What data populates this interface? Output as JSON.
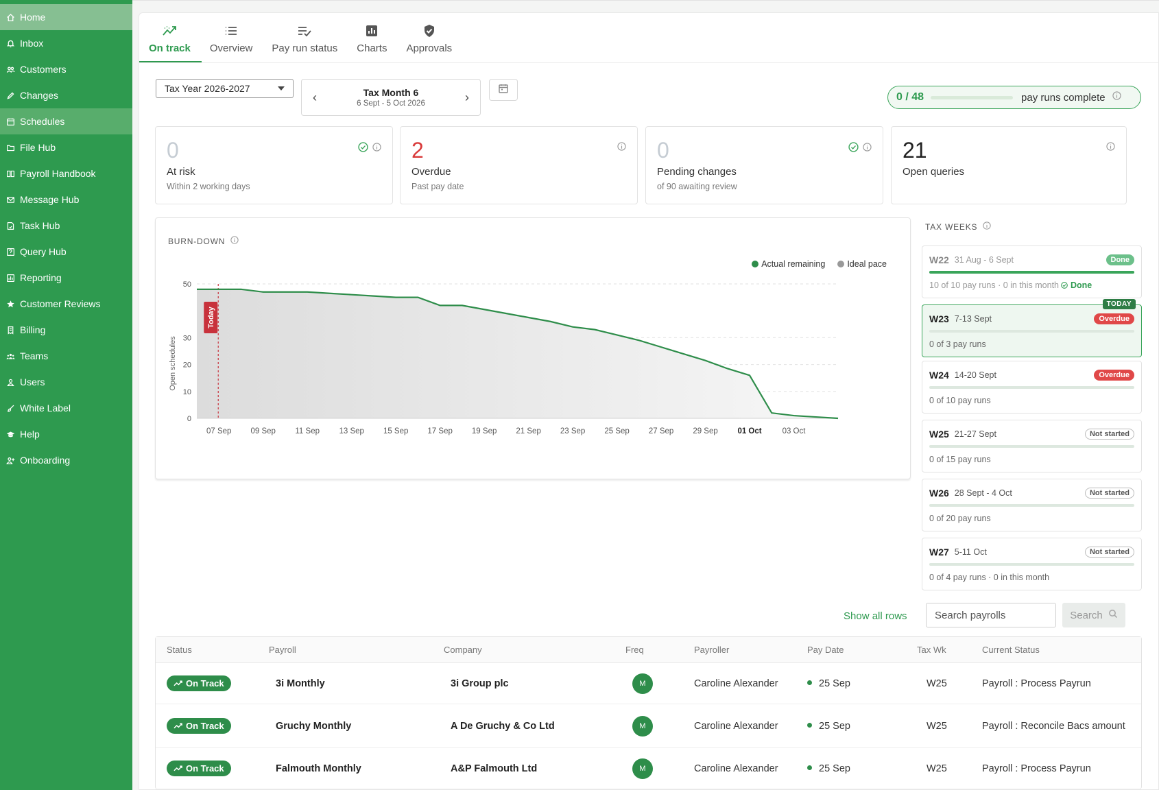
{
  "sidebar": {
    "items": [
      {
        "label": "Home",
        "icon": "home-icon"
      },
      {
        "label": "Inbox",
        "icon": "bell-icon"
      },
      {
        "label": "Customers",
        "icon": "people-icon"
      },
      {
        "label": "Changes",
        "icon": "pencil-icon"
      },
      {
        "label": "Schedules",
        "icon": "calendar-icon"
      },
      {
        "label": "File Hub",
        "icon": "folder-icon"
      },
      {
        "label": "Payroll Handbook",
        "icon": "book-icon"
      },
      {
        "label": "Message Hub",
        "icon": "mail-icon"
      },
      {
        "label": "Task Hub",
        "icon": "task-icon"
      },
      {
        "label": "Query Hub",
        "icon": "question-icon"
      },
      {
        "label": "Reporting",
        "icon": "chart-icon"
      },
      {
        "label": "Customer Reviews",
        "icon": "star-icon"
      },
      {
        "label": "Billing",
        "icon": "billing-icon"
      },
      {
        "label": "Teams",
        "icon": "teams-icon"
      },
      {
        "label": "Users",
        "icon": "user-icon"
      },
      {
        "label": "White Label",
        "icon": "brush-icon"
      },
      {
        "label": "Help",
        "icon": "graduation-icon"
      },
      {
        "label": "Onboarding",
        "icon": "user-plus-icon"
      }
    ]
  },
  "tabs": [
    {
      "label": "On track",
      "icon": "trend-icon"
    },
    {
      "label": "Overview",
      "icon": "list-icon"
    },
    {
      "label": "Pay run status",
      "icon": "checklist-icon"
    },
    {
      "label": "Charts",
      "icon": "bar-chart-icon"
    },
    {
      "label": "Approvals",
      "icon": "shield-check-icon"
    }
  ],
  "filters": {
    "tax_year": "Tax Year 2026-2027",
    "month_title": "Tax Month 6",
    "month_range": "6 Sept - 5 Oct 2026"
  },
  "progress": {
    "count": "0 / 48",
    "label": "pay runs complete",
    "fraction": 0
  },
  "kpis": {
    "at_risk": {
      "value": "0",
      "title": "At risk",
      "sub": "Within 2 working days"
    },
    "overdue": {
      "value": "2",
      "title": "Overdue",
      "sub": "Past pay date"
    },
    "pending": {
      "value": "0",
      "title": "Pending changes",
      "sub": "of 90 awaiting review"
    },
    "queries": {
      "value": "21",
      "title": "Open queries"
    }
  },
  "burndown": {
    "heading": "BURN-DOWN",
    "legend_actual": "Actual remaining",
    "legend_ideal": "Ideal pace",
    "today_label": "Today",
    "ylabel": "Open schedules"
  },
  "chart_data": {
    "type": "area",
    "title": "BURN-DOWN",
    "ylabel": "Open schedules",
    "ylim": [
      0,
      50
    ],
    "yticks": [
      0,
      10,
      20,
      30,
      50
    ],
    "xtick_labels": [
      "07 Sep",
      "09 Sep",
      "11 Sep",
      "13 Sep",
      "15 Sep",
      "17 Sep",
      "19 Sep",
      "21 Sep",
      "23 Sep",
      "25 Sep",
      "27 Sep",
      "29 Sep",
      "01 Oct",
      "03 Oct"
    ],
    "x": [
      "06 Sep",
      "07 Sep",
      "08 Sep",
      "09 Sep",
      "10 Sep",
      "11 Sep",
      "12 Sep",
      "13 Sep",
      "14 Sep",
      "15 Sep",
      "16 Sep",
      "17 Sep",
      "18 Sep",
      "19 Sep",
      "20 Sep",
      "21 Sep",
      "22 Sep",
      "23 Sep",
      "24 Sep",
      "25 Sep",
      "26 Sep",
      "27 Sep",
      "28 Sep",
      "29 Sep",
      "30 Sep",
      "01 Oct",
      "02 Oct",
      "03 Oct",
      "04 Oct",
      "05 Oct"
    ],
    "series": [
      {
        "name": "Actual remaining",
        "color": "#2e8d4a",
        "values": [
          48,
          48,
          48,
          47,
          47,
          47,
          46.5,
          46,
          45.5,
          45,
          45,
          42,
          42,
          40.5,
          39,
          37.5,
          36,
          34,
          33,
          31,
          29,
          26.5,
          24,
          21.5,
          18.5,
          16,
          2,
          1,
          0.5,
          0
        ]
      }
    ],
    "today": "07 Sep",
    "grid": true,
    "legend_position": "top-right"
  },
  "tax_weeks": {
    "heading": "TAX WEEKS",
    "today_tag": "TODAY",
    "weeks": [
      {
        "code": "W22",
        "dates": "31 Aug - 6 Sept",
        "badge": "Done",
        "sub": "10 of 10 pay runs · 0 in this month",
        "done_tag": "Done",
        "progress": 1
      },
      {
        "code": "W23",
        "dates": "7-13 Sept",
        "badge": "Overdue",
        "sub": "0 of 3 pay runs",
        "progress": 0
      },
      {
        "code": "W24",
        "dates": "14-20 Sept",
        "badge": "Overdue",
        "sub": "0 of 10 pay runs",
        "progress": 0
      },
      {
        "code": "W25",
        "dates": "21-27 Sept",
        "badge": "Not started",
        "sub": "0 of 15 pay runs",
        "progress": 0
      },
      {
        "code": "W26",
        "dates": "28 Sept - 4 Oct",
        "badge": "Not started",
        "sub": "0 of 20 pay runs",
        "progress": 0
      },
      {
        "code": "W27",
        "dates": "5-11 Oct",
        "badge": "Not started",
        "sub": "0 of 4 pay runs · 0 in this month",
        "progress": 0
      }
    ]
  },
  "table": {
    "show_all": "Show all rows",
    "search_placeholder": "Search payrolls",
    "search_button": "Search",
    "headers": [
      "Status",
      "Payroll",
      "Company",
      "Freq",
      "Payroller",
      "Pay Date",
      "Tax Wk",
      "Current Status"
    ],
    "rows": [
      {
        "status": "On Track",
        "payroll": "3i Monthly",
        "company": "3i Group plc",
        "freq": "M",
        "payroller": "Caroline Alexander",
        "pay_date": "25 Sep",
        "tax_wk": "W25",
        "current": "Payroll : Process Payrun"
      },
      {
        "status": "On Track",
        "payroll": "Gruchy Monthly",
        "company": "A De Gruchy & Co Ltd",
        "freq": "M",
        "payroller": "Caroline Alexander",
        "pay_date": "25 Sep",
        "tax_wk": "W25",
        "current": "Payroll : Reconcile Bacs amount"
      },
      {
        "status": "On Track",
        "payroll": "Falmouth Monthly",
        "company": "A&P Falmouth Ltd",
        "freq": "M",
        "payroller": "Caroline Alexander",
        "pay_date": "25 Sep",
        "tax_wk": "W25",
        "current": "Payroll : Process Payrun"
      }
    ]
  },
  "colors": {
    "brand": "#2e9a4f",
    "danger": "#d93a3a"
  }
}
